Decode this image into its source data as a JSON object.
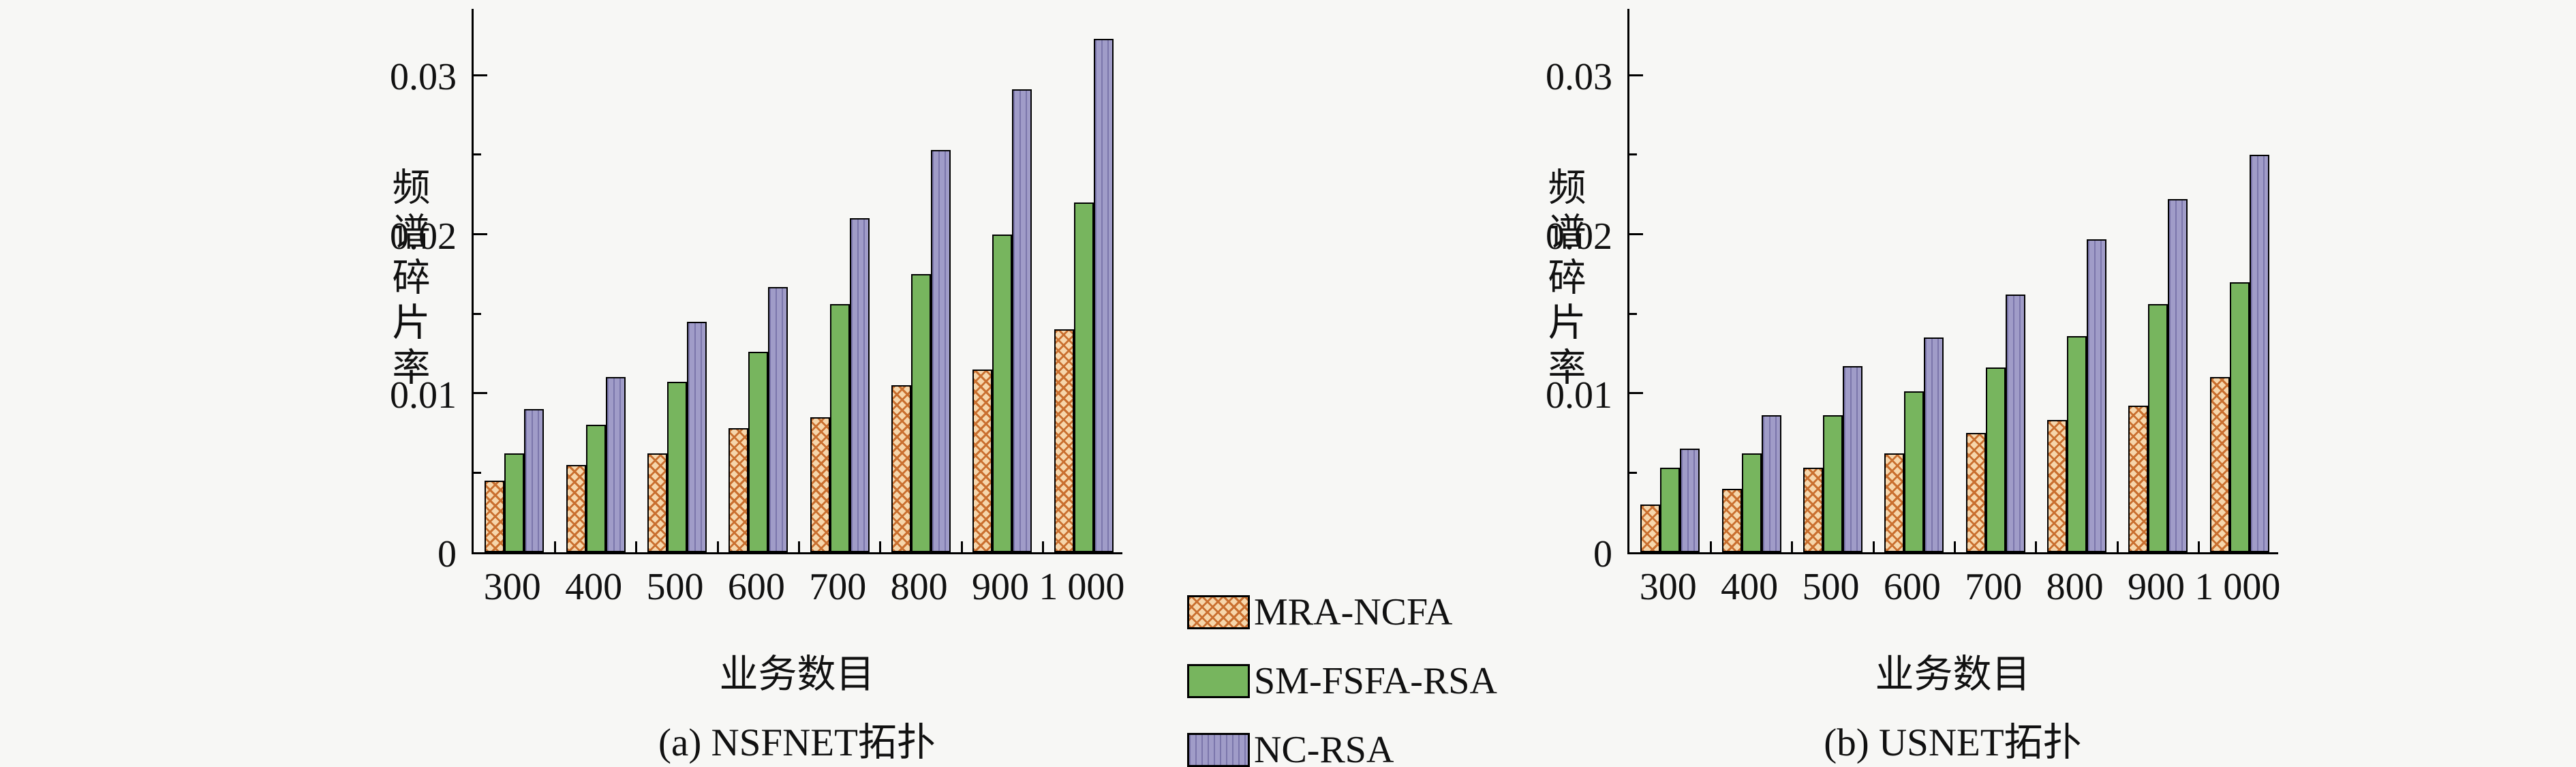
{
  "figure": {
    "background": "#f7f7f5",
    "text_color": "#111111",
    "axis_color": "#000000",
    "colors": {
      "mra_fill": "#f6d6ab",
      "mra_hatch": "#c96f2f",
      "sm_fill": "#77b55e",
      "nc_fill": "#a09cc8",
      "nc_stripe": "#7b76ab",
      "bar_border": "#000000"
    }
  },
  "legend": {
    "items": [
      {
        "label": "MRA-NCFA"
      },
      {
        "label": "SM-FSFA-RSA"
      },
      {
        "label": "NC-RSA"
      }
    ]
  },
  "chart_data": [
    {
      "type": "bar",
      "title": "(a) NSFNET拓扑",
      "xlabel": "业务数目",
      "ylabel": "频谱碎片率",
      "categories": [
        "300",
        "400",
        "500",
        "600",
        "700",
        "800",
        "900",
        "1 000"
      ],
      "yticks": [
        0,
        0.01,
        0.02,
        0.03
      ],
      "ytick_labels": [
        "0",
        "0.01",
        "0.02",
        "0.03"
      ],
      "ylim": [
        0,
        0.0343
      ],
      "grid": false,
      "legend_position": "bottom-center-shared",
      "series": [
        {
          "name": "MRA-NCFA",
          "values": [
            0.0045,
            0.0055,
            0.0062,
            0.0078,
            0.0085,
            0.0105,
            0.0115,
            0.014
          ]
        },
        {
          "name": "SM-FSFA-RSA",
          "values": [
            0.0062,
            0.008,
            0.0107,
            0.0126,
            0.0156,
            0.0175,
            0.02,
            0.022
          ]
        },
        {
          "name": "NC-RSA",
          "values": [
            0.009,
            0.011,
            0.0145,
            0.0167,
            0.021,
            0.0253,
            0.0291,
            0.0323
          ]
        }
      ]
    },
    {
      "type": "bar",
      "title": "(b) USNET拓扑",
      "xlabel": "业务数目",
      "ylabel": "频谱碎片率",
      "categories": [
        "300",
        "400",
        "500",
        "600",
        "700",
        "800",
        "900",
        "1 000"
      ],
      "yticks": [
        0,
        0.01,
        0.02,
        0.03
      ],
      "ytick_labels": [
        "0",
        "0.01",
        "0.02",
        "0.03"
      ],
      "ylim": [
        0,
        0.0343
      ],
      "grid": false,
      "legend_position": "bottom-center-shared",
      "series": [
        {
          "name": "MRA-NCFA",
          "values": [
            0.003,
            0.004,
            0.0053,
            0.0062,
            0.0075,
            0.0083,
            0.0092,
            0.011
          ]
        },
        {
          "name": "SM-FSFA-RSA",
          "values": [
            0.0053,
            0.0062,
            0.0086,
            0.0101,
            0.0116,
            0.0136,
            0.0156,
            0.017
          ]
        },
        {
          "name": "NC-RSA",
          "values": [
            0.0065,
            0.0086,
            0.0117,
            0.0135,
            0.0162,
            0.0197,
            0.0222,
            0.025
          ]
        }
      ]
    }
  ]
}
